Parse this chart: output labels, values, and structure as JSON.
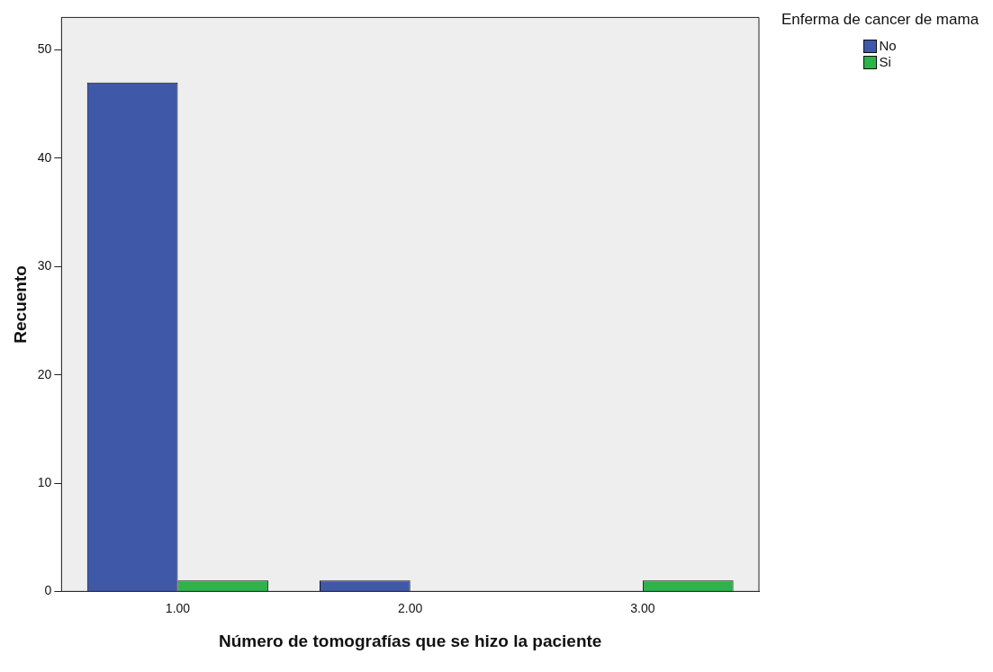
{
  "chart_data": {
    "type": "bar",
    "xlabel": "Número de tomografías que se hizo la paciente",
    "ylabel": "Recuento",
    "legend_title": "Enferma de cancer de mama",
    "categories": [
      "1.00",
      "2.00",
      "3.00"
    ],
    "series": [
      {
        "name": "No",
        "color": "#3f58a8",
        "values": [
          47,
          1,
          null
        ]
      },
      {
        "name": "Si",
        "color": "#2db34a",
        "values": [
          1,
          null,
          1
        ]
      }
    ],
    "ylim": [
      0,
      53
    ],
    "yticks": [
      0,
      10,
      20,
      30,
      40,
      50
    ],
    "grid": false,
    "legend": "top right"
  }
}
